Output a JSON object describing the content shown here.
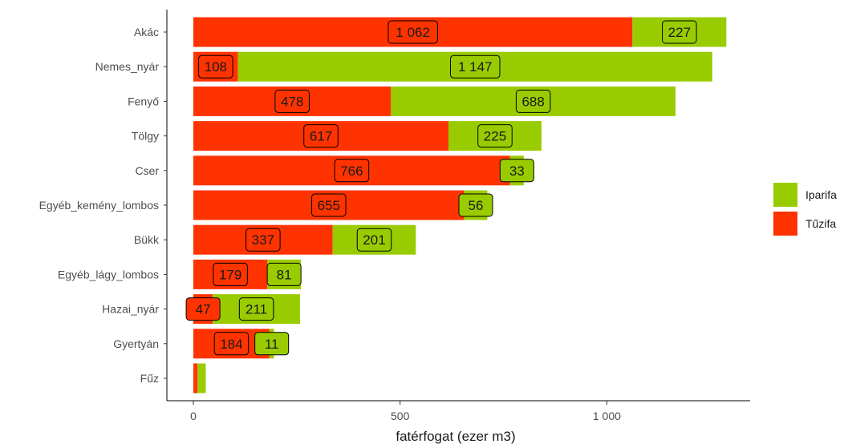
{
  "chart_data": {
    "type": "bar",
    "orientation": "horizontal",
    "stacked": true,
    "xlabel": "fatérfogat (ezer m3)",
    "ylabel": "",
    "title": "",
    "xlim": [
      0,
      1300
    ],
    "xticks": [
      0,
      500,
      1000
    ],
    "xtick_labels": [
      "0",
      "500",
      "1 000"
    ],
    "categories": [
      "Akác",
      "Nemes_nyár",
      "Fenyő",
      "Tölgy",
      "Cser",
      "Egyéb_kemény_lombos",
      "Bükk",
      "Egyéb_lágy_lombos",
      "Hazai_nyár",
      "Gyertyán",
      "Fűz"
    ],
    "series": [
      {
        "name": "Tűzifa",
        "color": "#ff3300",
        "values": [
          1062,
          108,
          478,
          617,
          766,
          655,
          337,
          179,
          47,
          184,
          10
        ],
        "labels": [
          "1 062",
          "108",
          "478",
          "617",
          "766",
          "655",
          "337",
          "179",
          "47",
          "184",
          ""
        ]
      },
      {
        "name": "Iparifa",
        "color": "#99cc00",
        "values": [
          227,
          1147,
          688,
          225,
          33,
          56,
          201,
          81,
          211,
          11,
          20
        ],
        "labels": [
          "227",
          "1 147",
          "688",
          "225",
          "33",
          "56",
          "201",
          "81",
          "211",
          "11",
          ""
        ]
      }
    ],
    "legend": {
      "position": "right",
      "items": [
        "Iparifa",
        "Tűzifa"
      ]
    },
    "grid": false
  }
}
